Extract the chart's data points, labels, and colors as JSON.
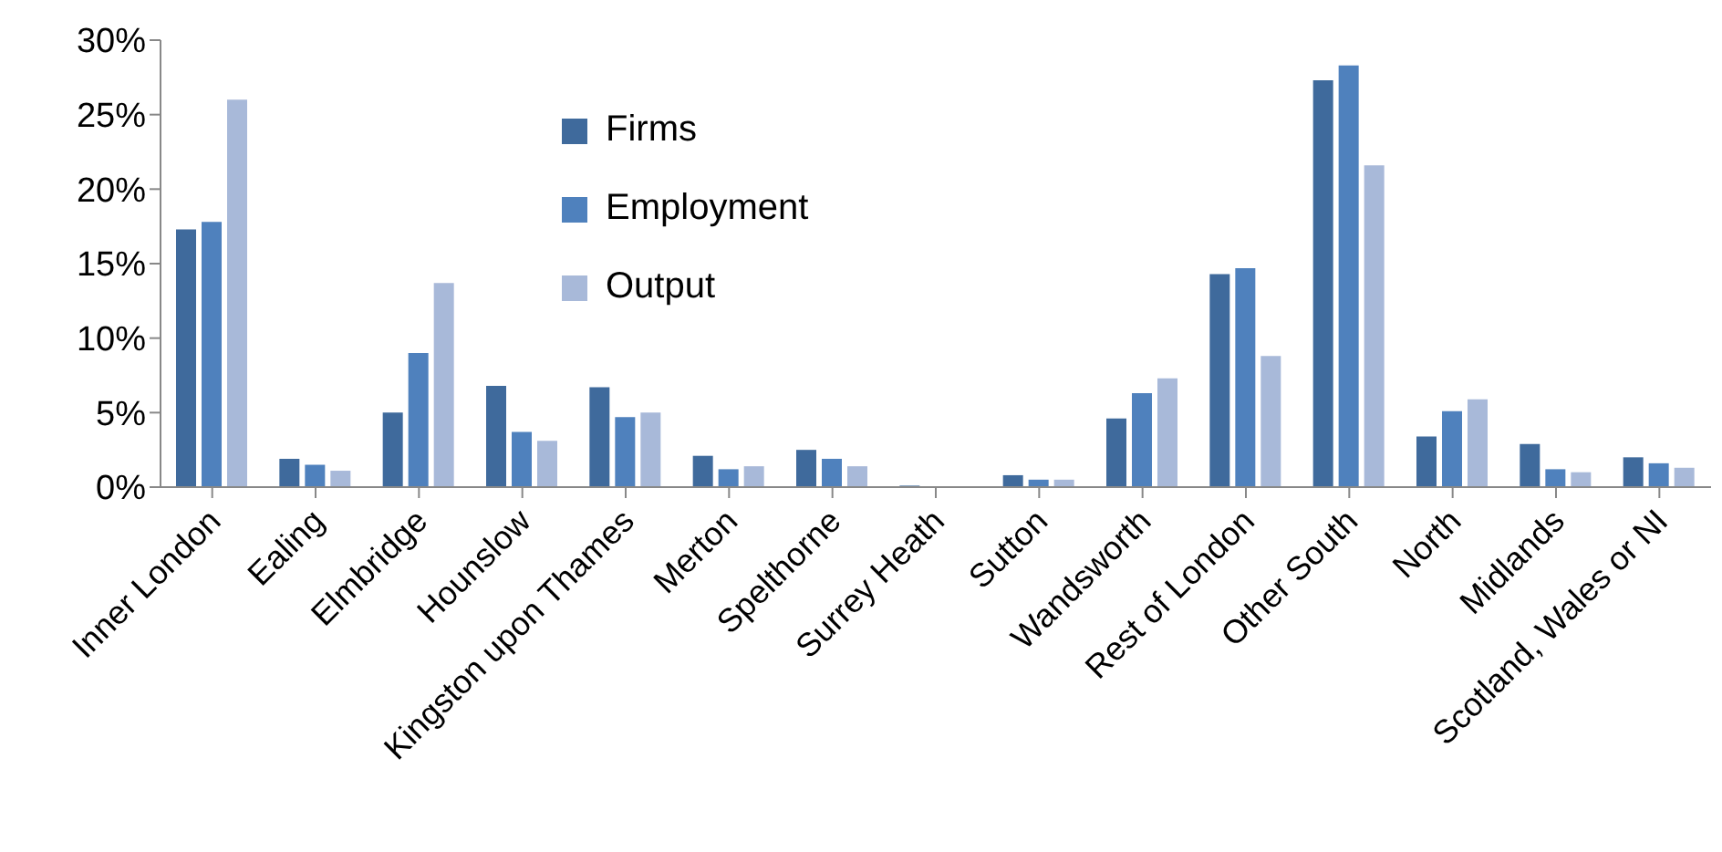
{
  "chart_data": {
    "type": "bar",
    "categories": [
      "Inner London",
      "Ealing",
      "Elmbridge",
      "Hounslow",
      "Kingston upon Thames",
      "Merton",
      "Spelthorne",
      "Surrey Heath",
      "Sutton",
      "Wandsworth",
      "Rest of London",
      "Other South",
      "North",
      "Midlands",
      "Scotland, Wales or NI"
    ],
    "series": [
      {
        "name": "Firms",
        "color": "#3f6a9c",
        "values": [
          17.3,
          1.9,
          5.0,
          6.8,
          6.7,
          2.1,
          2.5,
          0.1,
          0.8,
          4.6,
          14.3,
          27.3,
          3.4,
          2.9,
          2.0
        ]
      },
      {
        "name": "Employment",
        "color": "#4f81bd",
        "values": [
          17.8,
          1.5,
          9.0,
          3.7,
          4.7,
          1.2,
          1.9,
          0.0,
          0.5,
          6.3,
          14.7,
          28.3,
          5.1,
          1.2,
          1.6
        ]
      },
      {
        "name": "Output",
        "color": "#a8b9d9",
        "values": [
          26.0,
          1.1,
          13.7,
          3.1,
          5.0,
          1.4,
          1.4,
          0.0,
          0.5,
          7.3,
          8.8,
          21.6,
          5.9,
          1.0,
          1.3
        ]
      }
    ],
    "ylim": [
      0,
      30
    ],
    "yticks": [
      {
        "value": 0,
        "label": "0%"
      },
      {
        "value": 5,
        "label": "5%"
      },
      {
        "value": 10,
        "label": "10%"
      },
      {
        "value": 15,
        "label": "15%"
      },
      {
        "value": 20,
        "label": "20%"
      },
      {
        "value": 25,
        "label": "25%"
      },
      {
        "value": 30,
        "label": "30%"
      }
    ],
    "grid": false,
    "legend": "top"
  }
}
